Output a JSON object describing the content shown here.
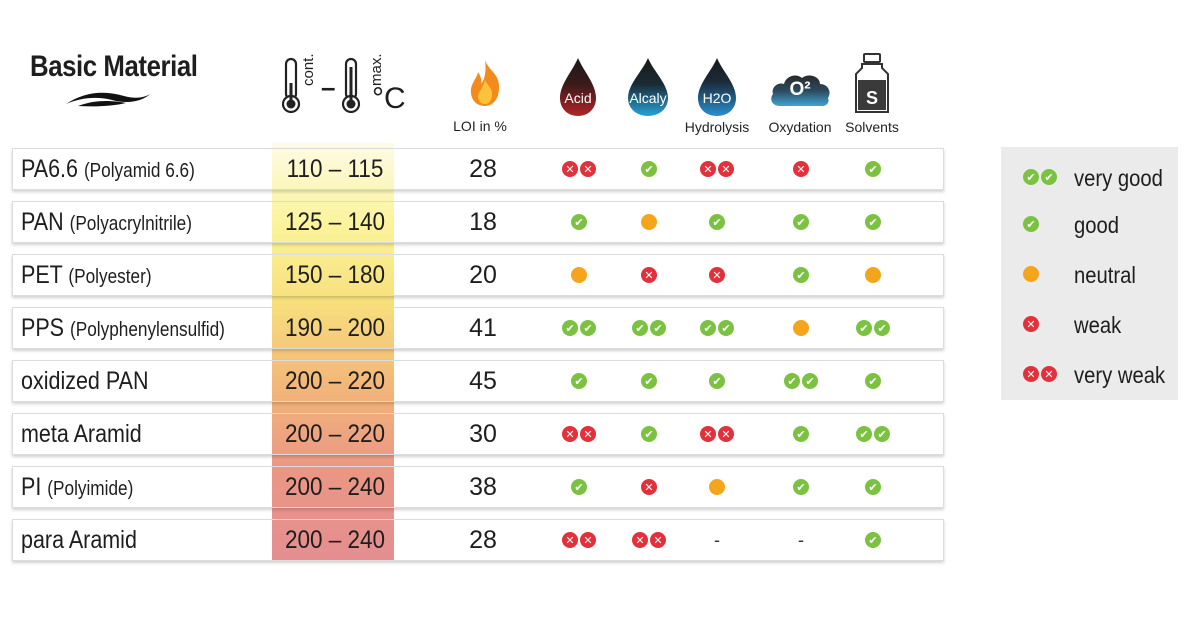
{
  "chart_data": {
    "type": "table",
    "title": "Basic Material",
    "header": {
      "temp_cont": "cont.",
      "temp_max": "max.",
      "temp_dash": "–",
      "temp_unit": "°C",
      "loi": "LOI in %",
      "acid": "Acid",
      "alcaly": "Alcaly",
      "h2o": "H2O",
      "hydrolysis": "Hydrolysis",
      "oxygen": "O²",
      "oxydation": "Oxydation",
      "solvent_bottle": "S",
      "solvents": "Solvents"
    },
    "rows": [
      {
        "name": "PA6.6",
        "sub": "(Polyamid 6.6)",
        "temp": "110 – 115",
        "loi": "28",
        "ratings": [
          "very weak",
          "good",
          "very weak",
          "weak",
          "good"
        ]
      },
      {
        "name": "PAN",
        "sub": "(Polyacrylnitrile)",
        "temp": "125 – 140",
        "loi": "18",
        "ratings": [
          "good",
          "neutral",
          "good",
          "good",
          "good"
        ]
      },
      {
        "name": "PET",
        "sub": "(Polyester)",
        "temp": "150 – 180",
        "loi": "20",
        "ratings": [
          "neutral",
          "weak",
          "weak",
          "good",
          "neutral"
        ]
      },
      {
        "name": "PPS",
        "sub": "(Polyphenylensulfid)",
        "temp": "190 – 200",
        "loi": "41",
        "ratings": [
          "very good",
          "very good",
          "very good",
          "neutral",
          "very good"
        ]
      },
      {
        "name": "oxidized PAN",
        "sub": "",
        "temp": "200 – 220",
        "loi": "45",
        "ratings": [
          "good",
          "good",
          "good",
          "very good",
          "good"
        ]
      },
      {
        "name": "meta Aramid",
        "sub": "",
        "temp": "200 – 220",
        "loi": "30",
        "ratings": [
          "very weak",
          "good",
          "very weak",
          "good",
          "very good"
        ]
      },
      {
        "name": "PI",
        "sub": "(Polyimide)",
        "temp": "200 – 240",
        "loi": "38",
        "ratings": [
          "good",
          "weak",
          "neutral",
          "good",
          "good"
        ]
      },
      {
        "name": "para Aramid",
        "sub": "",
        "temp": "200 – 240",
        "loi": "28",
        "ratings": [
          "very weak",
          "very weak",
          "-",
          "-",
          "good"
        ]
      }
    ],
    "legend": [
      {
        "key": "very good",
        "label": "very good"
      },
      {
        "key": "good",
        "label": "good"
      },
      {
        "key": "neutral",
        "label": "neutral"
      },
      {
        "key": "weak",
        "label": "weak"
      },
      {
        "key": "very weak",
        "label": "very weak"
      }
    ],
    "colors": {
      "good": "#7cc242",
      "weak": "#e2313a",
      "neutral": "#f4a51c",
      "acid_drop": "#8e1b1f",
      "alcaly_drop": "#1f93c8",
      "h2o_drop": "#1c6fa8",
      "flame": "#f28a1c"
    }
  }
}
